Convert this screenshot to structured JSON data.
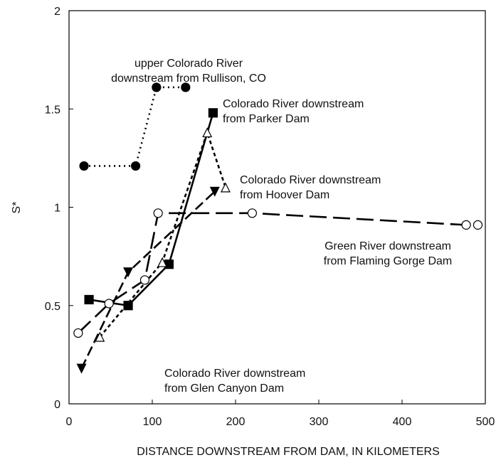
{
  "chart_data": {
    "type": "line",
    "x_label": "DISTANCE DOWNSTREAM FROM DAM, IN KILOMETERS",
    "y_label": "S*",
    "xlim": [
      0,
      500
    ],
    "xticks": [
      0,
      100,
      200,
      300,
      400,
      500
    ],
    "ylim": [
      0,
      2
    ],
    "yticks": [
      0,
      0.5,
      1,
      1.5,
      2
    ],
    "grid": false,
    "series": [
      {
        "label_lines": [
          "upper Colorado River",
          "downstream from Rullison, CO"
        ],
        "color": "#000000",
        "marker": "circle",
        "filled": true,
        "dash": "dotted",
        "x": [
          18,
          80,
          105,
          140
        ],
        "values": [
          1.21,
          1.21,
          1.61,
          1.61
        ]
      },
      {
        "label_lines": [
          "Colorado River downstream",
          "from Parker Dam"
        ],
        "color": "#000000",
        "marker": "square",
        "filled": true,
        "dash": "solid",
        "x": [
          24,
          71,
          120,
          173
        ],
        "values": [
          0.53,
          0.5,
          0.71,
          1.48
        ]
      },
      {
        "label_lines": [
          "Colorado River downstream",
          "from Hoover Dam"
        ],
        "color": "#000000",
        "marker": "triangle-down",
        "filled": true,
        "dash": "dashed",
        "x": [
          15,
          71,
          175
        ],
        "values": [
          0.18,
          0.67,
          1.08
        ]
      },
      {
        "label_lines": [
          "Colorado River downstream",
          "from Glen Canyon Dam"
        ],
        "color": "#000000",
        "marker": "triangle-up",
        "filled": false,
        "dash": "short-dashed",
        "x": [
          37,
          112,
          166,
          188
        ],
        "values": [
          0.34,
          0.72,
          1.38,
          1.1
        ]
      },
      {
        "label_lines": [
          "Green River downstream",
          "from Flaming Gorge Dam"
        ],
        "color": "#000000",
        "marker": "circle",
        "filled": false,
        "dash": "long-dashed",
        "x": [
          11,
          48,
          91,
          107,
          220,
          477,
          491
        ],
        "values": [
          0.36,
          0.51,
          0.63,
          0.97,
          0.97,
          0.91,
          0.91
        ]
      }
    ]
  }
}
